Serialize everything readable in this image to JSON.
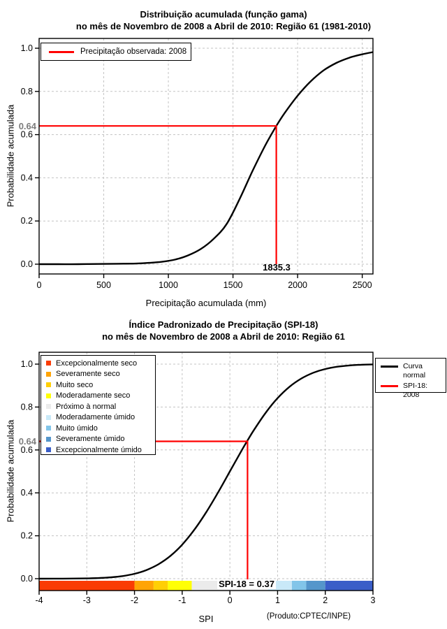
{
  "page": {
    "background": "#FFFFFF",
    "accent_red": "#FF0000",
    "curve_black": "#000000"
  },
  "footer": "(Produto:CPTEC/INPE)",
  "chart_data": [
    {
      "type": "line",
      "title": "Distribuição acumulada (função gama)",
      "subtitle": "no mês de Novembro de 2008 a Abril de 2010: Região 61 (1981-2010)",
      "xlabel": "Precipitação acumulada (mm)",
      "ylabel": "Probabilidade acumulada",
      "xlim": [
        0,
        2583
      ],
      "ylim": [
        0,
        1
      ],
      "x_ticks": [
        0,
        500,
        1000,
        1500,
        2000,
        2500
      ],
      "y_ticks": [
        0,
        0.2,
        0.4,
        0.6,
        0.8,
        1
      ],
      "grid": true,
      "legend_position": "top-left",
      "legend": [
        {
          "label": "Precipitação observada: 2008",
          "color": "#FF0000",
          "type": "line"
        }
      ],
      "series": [
        {
          "color": "#000000",
          "points": [
            [
              0,
              0
            ],
            [
              150,
              0
            ],
            [
              300,
              0
            ],
            [
              450,
              0.001
            ],
            [
              600,
              0.002
            ],
            [
              750,
              0.003
            ],
            [
              850,
              0.006
            ],
            [
              950,
              0.011
            ],
            [
              1050,
              0.021
            ],
            [
              1150,
              0.04
            ],
            [
              1250,
              0.07
            ],
            [
              1350,
              0.117
            ],
            [
              1450,
              0.185
            ],
            [
              1550,
              0.3
            ],
            [
              1650,
              0.43
            ],
            [
              1750,
              0.55
            ],
            [
              1835.3,
              0.64
            ],
            [
              1900,
              0.7
            ],
            [
              2000,
              0.78
            ],
            [
              2100,
              0.846
            ],
            [
              2200,
              0.897
            ],
            [
              2300,
              0.932
            ],
            [
              2400,
              0.956
            ],
            [
              2500,
              0.972
            ],
            [
              2583,
              0.982
            ]
          ]
        }
      ],
      "reference": {
        "x": 1835.3,
        "y": 0.64,
        "color": "#FF0000",
        "x_label": "1835.3",
        "y_label": "0.64"
      }
    },
    {
      "type": "line",
      "title": "Índice Padronizado de Precipitação (SPI-18)",
      "subtitle": "no mês de Novembro de 2008 a Abril de 2010: Região 61",
      "xlabel": "SPI",
      "ylabel": "Probabilidade acumulada",
      "xlim": [
        -4,
        3
      ],
      "ylim": [
        0,
        1
      ],
      "x_ticks": [
        -4,
        -3,
        -2,
        -1,
        0,
        1,
        2,
        3
      ],
      "y_ticks": [
        0,
        0.2,
        0.4,
        0.6,
        0.8,
        1
      ],
      "grid": true,
      "legend_position": "top-right",
      "legend": [
        {
          "label": "Curva normal",
          "color": "#000000",
          "type": "line"
        },
        {
          "label": "SPI-18: 2008",
          "color": "#FF0000",
          "type": "line"
        }
      ],
      "series": [
        {
          "name": "Curva normal",
          "color": "#000000",
          "points": [
            [
              -4,
              0
            ],
            [
              -3.5,
              0.0002
            ],
            [
              -3,
              0.0013
            ],
            [
              -2.75,
              0.003
            ],
            [
              -2.5,
              0.0062
            ],
            [
              -2.25,
              0.0122
            ],
            [
              -2,
              0.0228
            ],
            [
              -1.75,
              0.0401
            ],
            [
              -1.5,
              0.0668
            ],
            [
              -1.25,
              0.1056
            ],
            [
              -1,
              0.1587
            ],
            [
              -0.75,
              0.2266
            ],
            [
              -0.5,
              0.3085
            ],
            [
              -0.25,
              0.4013
            ],
            [
              0,
              0.5
            ],
            [
              0.25,
              0.5987
            ],
            [
              0.37,
              0.6443
            ],
            [
              0.5,
              0.6915
            ],
            [
              0.75,
              0.7734
            ],
            [
              1,
              0.8413
            ],
            [
              1.25,
              0.8944
            ],
            [
              1.5,
              0.9332
            ],
            [
              1.75,
              0.9599
            ],
            [
              2,
              0.9772
            ],
            [
              2.25,
              0.9878
            ],
            [
              2.5,
              0.9938
            ],
            [
              2.75,
              0.997
            ],
            [
              3,
              0.9987
            ]
          ]
        }
      ],
      "categories": [
        {
          "label": "Excepcionalmente seco",
          "color": "#FA3C04",
          "range": [
            -4,
            -2
          ]
        },
        {
          "label": "Severamente seco",
          "color": "#FFA405",
          "range": [
            -2,
            -1.6
          ]
        },
        {
          "label": "Muito seco",
          "color": "#FFCF05",
          "range": [
            -1.6,
            -1.3
          ]
        },
        {
          "label": "Moderadamente seco",
          "color": "#FFFF05",
          "range": [
            -1.3,
            -0.8
          ]
        },
        {
          "label": "Próximo à normal",
          "color": "#EBEBEB",
          "range": [
            -0.8,
            0.8
          ]
        },
        {
          "label": "Moderadamente úmido",
          "color": "#C9E9F8",
          "range": [
            0.8,
            1.3
          ]
        },
        {
          "label": "Muito úmido",
          "color": "#82C5E9",
          "range": [
            1.3,
            1.6
          ]
        },
        {
          "label": "Severamente úmido",
          "color": "#5596CB",
          "range": [
            1.6,
            2
          ]
        },
        {
          "label": "Excepcionalmente úmido",
          "color": "#3A5EC8",
          "range": [
            2,
            3
          ]
        }
      ],
      "reference": {
        "x": 0.37,
        "y": 0.64,
        "color": "#FF0000",
        "label": "SPI-18 = 0.37",
        "y_label": "0.64"
      }
    }
  ]
}
